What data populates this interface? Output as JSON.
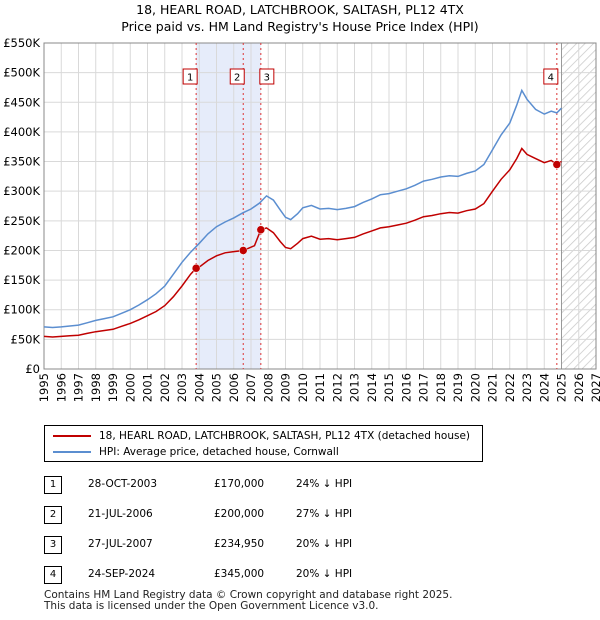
{
  "chart_data": {
    "type": "line",
    "title": "18, HEARL ROAD, LATCHBROOK, SALTASH, PL12 4TX",
    "subtitle": "Price paid vs. HM Land Registry's House Price Index (HPI)",
    "xlim": [
      1995,
      2027
    ],
    "ylim": [
      0,
      550000
    ],
    "x_ticks": [
      "1995",
      "1996",
      "1997",
      "1998",
      "1999",
      "2000",
      "2001",
      "2002",
      "2003",
      "2004",
      "2005",
      "2006",
      "2007",
      "2008",
      "2009",
      "2010",
      "2011",
      "2012",
      "2013",
      "2014",
      "2015",
      "2016",
      "2017",
      "2018",
      "2019",
      "2020",
      "2021",
      "2022",
      "2023",
      "2024",
      "2025",
      "2026",
      "2027"
    ],
    "y_ticks": [
      {
        "value": 0,
        "label": "£0"
      },
      {
        "value": 50000,
        "label": "£50K"
      },
      {
        "value": 100000,
        "label": "£100K"
      },
      {
        "value": 150000,
        "label": "£150K"
      },
      {
        "value": 200000,
        "label": "£200K"
      },
      {
        "value": 250000,
        "label": "£250K"
      },
      {
        "value": 300000,
        "label": "£300K"
      },
      {
        "value": 350000,
        "label": "£350K"
      },
      {
        "value": 400000,
        "label": "£400K"
      },
      {
        "value": 450000,
        "label": "£450K"
      },
      {
        "value": 500000,
        "label": "£500K"
      },
      {
        "value": 550000,
        "label": "£550K"
      }
    ],
    "shaded_range": [
      2003.82,
      2007.57
    ],
    "future_hatch_start": 2025.0,
    "series": [
      {
        "name": "HPI: Average price, detached house, Cornwall",
        "color": "#5b8ed0",
        "points": [
          [
            1995.0,
            71000
          ],
          [
            1995.5,
            70000
          ],
          [
            1996.0,
            71000
          ],
          [
            1996.5,
            72500
          ],
          [
            1997.0,
            74000
          ],
          [
            1997.5,
            78000
          ],
          [
            1998.0,
            82000
          ],
          [
            1998.5,
            85000
          ],
          [
            1999.0,
            88000
          ],
          [
            1999.5,
            94000
          ],
          [
            2000.0,
            100000
          ],
          [
            2000.5,
            108000
          ],
          [
            2001.0,
            117000
          ],
          [
            2001.5,
            127000
          ],
          [
            2002.0,
            140000
          ],
          [
            2002.5,
            160000
          ],
          [
            2003.0,
            180000
          ],
          [
            2003.5,
            197000
          ],
          [
            2004.0,
            212000
          ],
          [
            2004.5,
            228000
          ],
          [
            2005.0,
            240000
          ],
          [
            2005.5,
            248000
          ],
          [
            2006.0,
            255000
          ],
          [
            2006.5,
            263000
          ],
          [
            2007.0,
            270000
          ],
          [
            2007.5,
            280000
          ],
          [
            2007.9,
            292000
          ],
          [
            2008.3,
            285000
          ],
          [
            2008.7,
            268000
          ],
          [
            2009.0,
            256000
          ],
          [
            2009.3,
            252000
          ],
          [
            2009.7,
            262000
          ],
          [
            2010.0,
            272000
          ],
          [
            2010.5,
            276000
          ],
          [
            2011.0,
            270000
          ],
          [
            2011.5,
            271000
          ],
          [
            2012.0,
            269000
          ],
          [
            2012.5,
            271000
          ],
          [
            2013.0,
            274000
          ],
          [
            2013.5,
            281000
          ],
          [
            2014.0,
            287000
          ],
          [
            2014.5,
            294000
          ],
          [
            2015.0,
            296000
          ],
          [
            2015.5,
            300000
          ],
          [
            2016.0,
            304000
          ],
          [
            2016.5,
            310000
          ],
          [
            2017.0,
            317000
          ],
          [
            2017.5,
            320000
          ],
          [
            2018.0,
            324000
          ],
          [
            2018.5,
            326000
          ],
          [
            2019.0,
            325000
          ],
          [
            2019.5,
            330000
          ],
          [
            2020.0,
            334000
          ],
          [
            2020.5,
            345000
          ],
          [
            2021.0,
            370000
          ],
          [
            2021.5,
            395000
          ],
          [
            2022.0,
            415000
          ],
          [
            2022.4,
            445000
          ],
          [
            2022.7,
            470000
          ],
          [
            2023.0,
            455000
          ],
          [
            2023.5,
            438000
          ],
          [
            2024.0,
            430000
          ],
          [
            2024.4,
            435000
          ],
          [
            2024.73,
            432000
          ],
          [
            2025.0,
            440000
          ]
        ]
      },
      {
        "name": "18, HEARL ROAD, LATCHBROOK, SALTASH, PL12 4TX (detached house)",
        "color": "#c00000",
        "points": [
          [
            1995.0,
            55000
          ],
          [
            1995.5,
            54000
          ],
          [
            1996.0,
            55000
          ],
          [
            1996.5,
            56000
          ],
          [
            1997.0,
            57000
          ],
          [
            1997.5,
            60000
          ],
          [
            1998.0,
            63000
          ],
          [
            1998.5,
            65000
          ],
          [
            1999.0,
            67000
          ],
          [
            1999.5,
            72000
          ],
          [
            2000.0,
            77000
          ],
          [
            2000.5,
            83000
          ],
          [
            2001.0,
            90000
          ],
          [
            2001.5,
            97000
          ],
          [
            2002.0,
            107000
          ],
          [
            2002.5,
            122000
          ],
          [
            2003.0,
            140000
          ],
          [
            2003.5,
            160000
          ],
          [
            2003.82,
            170000
          ],
          [
            2004.0,
            172000
          ],
          [
            2004.5,
            183000
          ],
          [
            2005.0,
            191000
          ],
          [
            2005.5,
            196000
          ],
          [
            2006.0,
            198000
          ],
          [
            2006.55,
            200000
          ],
          [
            2006.8,
            203000
          ],
          [
            2007.2,
            208000
          ],
          [
            2007.57,
            234950
          ],
          [
            2007.9,
            238000
          ],
          [
            2008.3,
            230000
          ],
          [
            2008.7,
            215000
          ],
          [
            2009.0,
            205000
          ],
          [
            2009.3,
            203000
          ],
          [
            2009.7,
            212000
          ],
          [
            2010.0,
            220000
          ],
          [
            2010.5,
            224000
          ],
          [
            2011.0,
            219000
          ],
          [
            2011.5,
            220000
          ],
          [
            2012.0,
            218000
          ],
          [
            2012.5,
            220000
          ],
          [
            2013.0,
            222000
          ],
          [
            2013.5,
            228000
          ],
          [
            2014.0,
            233000
          ],
          [
            2014.5,
            238000
          ],
          [
            2015.0,
            240000
          ],
          [
            2015.5,
            243000
          ],
          [
            2016.0,
            246000
          ],
          [
            2016.5,
            251000
          ],
          [
            2017.0,
            257000
          ],
          [
            2017.5,
            259000
          ],
          [
            2018.0,
            262000
          ],
          [
            2018.5,
            264000
          ],
          [
            2019.0,
            263000
          ],
          [
            2019.5,
            267000
          ],
          [
            2020.0,
            270000
          ],
          [
            2020.5,
            279000
          ],
          [
            2021.0,
            300000
          ],
          [
            2021.5,
            320000
          ],
          [
            2022.0,
            336000
          ],
          [
            2022.4,
            355000
          ],
          [
            2022.7,
            372000
          ],
          [
            2023.0,
            362000
          ],
          [
            2023.5,
            355000
          ],
          [
            2024.0,
            348000
          ],
          [
            2024.4,
            352000
          ],
          [
            2024.73,
            345000
          ],
          [
            2025.0,
            350000
          ]
        ]
      }
    ],
    "sales": [
      {
        "id": "1",
        "x": 2003.82,
        "price": 170000,
        "date": "28-OCT-2003",
        "price_label": "£170,000",
        "hpi_label": "24% ↓ HPI"
      },
      {
        "id": "2",
        "x": 2006.55,
        "price": 200000,
        "date": "21-JUL-2006",
        "price_label": "£200,000",
        "hpi_label": "27% ↓ HPI"
      },
      {
        "id": "3",
        "x": 2007.57,
        "price": 234950,
        "date": "27-JUL-2007",
        "price_label": "£234,950",
        "hpi_label": "20% ↓ HPI"
      },
      {
        "id": "4",
        "x": 2024.73,
        "price": 345000,
        "date": "24-SEP-2024",
        "price_label": "£345,000",
        "hpi_label": "20% ↓ HPI"
      }
    ]
  },
  "legend": {
    "property_label": "18, HEARL ROAD, LATCHBROOK, SALTASH, PL12 4TX (detached house)",
    "hpi_label": "HPI: Average price, detached house, Cornwall",
    "property_color": "#c00000",
    "hpi_color": "#5b8ed0"
  },
  "footer": {
    "line1": "Contains HM Land Registry data © Crown copyright and database right 2025.",
    "line2": "This data is licensed under the Open Government Licence v3.0."
  }
}
